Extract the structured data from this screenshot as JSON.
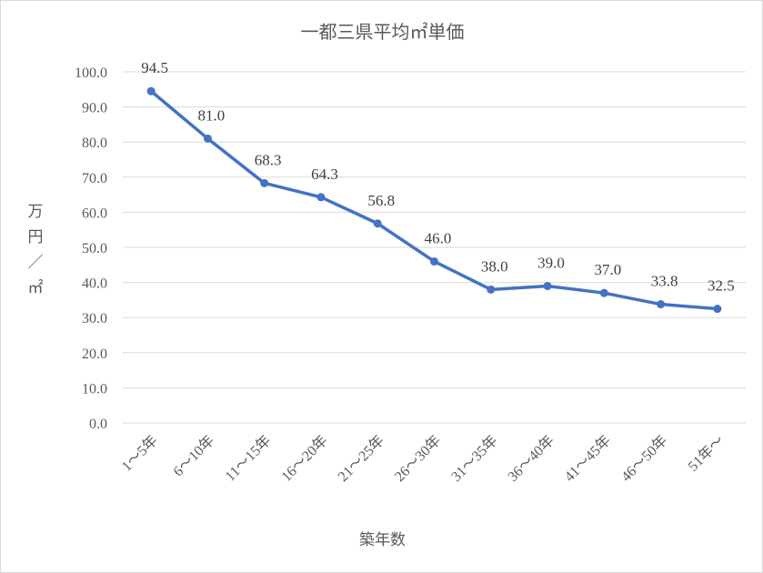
{
  "chart_data": {
    "type": "line",
    "title": "一都三県平均㎡単価",
    "xlabel": "築年数",
    "ylabel": "万円／㎡",
    "categories": [
      "1～5年",
      "6～10年",
      "11～15年",
      "16～20年",
      "21～25年",
      "26～30年",
      "31～35年",
      "36～40年",
      "41～45年",
      "46～50年",
      "51年～"
    ],
    "series": [
      {
        "values": [
          94.5,
          81.0,
          68.3,
          64.3,
          56.8,
          46.0,
          38.0,
          39.0,
          37.0,
          33.8,
          32.5
        ]
      }
    ],
    "ylim": [
      0,
      100
    ],
    "yticks": [
      "0.0",
      "10.0",
      "20.0",
      "30.0",
      "40.0",
      "50.0",
      "60.0",
      "70.0",
      "80.0",
      "90.0",
      "100.0"
    ],
    "data_labels": [
      "94.5",
      "81.0",
      "68.3",
      "64.3",
      "56.8",
      "46.0",
      "38.0",
      "39.0",
      "37.0",
      "33.8",
      "32.5"
    ],
    "grid": true,
    "legend": "none",
    "line_color": "#4472c4"
  }
}
